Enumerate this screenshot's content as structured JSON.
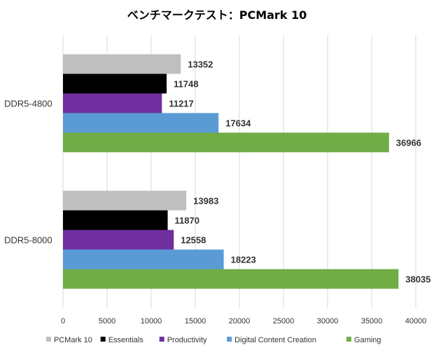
{
  "chart_data": {
    "type": "bar",
    "orientation": "horizontal",
    "title": "ベンチマークテスト：PCMark 10",
    "categories": [
      "DDR5-4800",
      "DDR5-8000"
    ],
    "series": [
      {
        "name": "PCMark 10",
        "color": "#bfbfbf",
        "values": [
          13352,
          13983
        ]
      },
      {
        "name": "Essentials",
        "color": "#000000",
        "values": [
          11748,
          11870
        ]
      },
      {
        "name": "Productivity",
        "color": "#7030a0",
        "values": [
          11217,
          12558
        ]
      },
      {
        "name": "Digital Content Creation",
        "color": "#5b9bd5",
        "values": [
          17634,
          18223
        ]
      },
      {
        "name": "Gaming",
        "color": "#70ad47",
        "values": [
          36966,
          38035
        ]
      }
    ],
    "xlim": [
      0,
      40000
    ],
    "xticks": [
      0,
      5000,
      10000,
      15000,
      20000,
      25000,
      30000,
      35000,
      40000
    ],
    "grid": true,
    "legend_position": "bottom"
  }
}
